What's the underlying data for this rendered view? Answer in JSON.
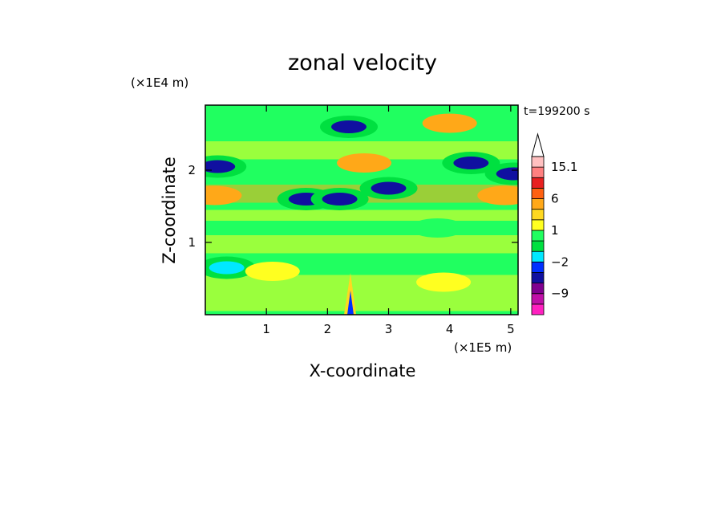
{
  "chart_data": {
    "type": "heatmap",
    "title": "zonal velocity",
    "xlabel": "X-coordinate",
    "ylabel": "Z-coordinate",
    "x_unit": "(×1E5 m)",
    "y_unit": "(×1E4 m)",
    "time_label": "t=199200 s",
    "xlim": [
      0,
      5.12
    ],
    "ylim": [
      0,
      2.9
    ],
    "x_ticks": [
      1,
      2,
      3,
      4,
      5
    ],
    "x_tick_labels": [
      "1",
      "2",
      "3",
      "4",
      "5"
    ],
    "y_ticks": [
      1,
      2
    ],
    "y_tick_labels": [
      "1",
      "2"
    ],
    "colorbar": {
      "levels": [
        -15,
        -12,
        -9,
        -6,
        -3,
        -2,
        -1,
        0,
        1,
        2,
        3,
        6,
        9,
        12,
        15.1
      ],
      "tick_values": [
        15.1,
        6,
        1,
        -2,
        -9
      ],
      "tick_labels": [
        "15.1",
        "6",
        "1",
        "−2",
        "−9"
      ],
      "colors": [
        "#ff20c0",
        "#c010a8",
        "#800090",
        "#1010a0",
        "#0030ff",
        "#00e8ff",
        "#00e040",
        "#20ff60",
        "#ffff20",
        "#ffd820",
        "#ffa818",
        "#ff6010",
        "#e82020",
        "#ff8080",
        "#ffc0c0"
      ],
      "extend_max": true
    },
    "field_features": [
      {
        "x": 0.2,
        "z": 2.05,
        "u": -5
      },
      {
        "x": 1.65,
        "z": 1.6,
        "u": -4
      },
      {
        "x": 2.2,
        "z": 1.6,
        "u": -6
      },
      {
        "x": 2.35,
        "z": 2.6,
        "u": -6
      },
      {
        "x": 3.0,
        "z": 1.75,
        "u": -5
      },
      {
        "x": 4.35,
        "z": 2.1,
        "u": -6
      },
      {
        "x": 5.05,
        "z": 1.95,
        "u": -4
      },
      {
        "x": 0.15,
        "z": 1.65,
        "u": 3
      },
      {
        "x": 2.6,
        "z": 2.1,
        "u": 3
      },
      {
        "x": 4.0,
        "z": 2.65,
        "u": 3
      },
      {
        "x": 4.9,
        "z": 1.65,
        "u": 3
      },
      {
        "x": 0.35,
        "z": 0.65,
        "u": -2
      },
      {
        "x": 3.8,
        "z": 1.2,
        "u": 0
      },
      {
        "x": 1.1,
        "z": 0.6,
        "u": 1
      },
      {
        "x": 3.9,
        "z": 0.45,
        "u": 1
      }
    ]
  }
}
